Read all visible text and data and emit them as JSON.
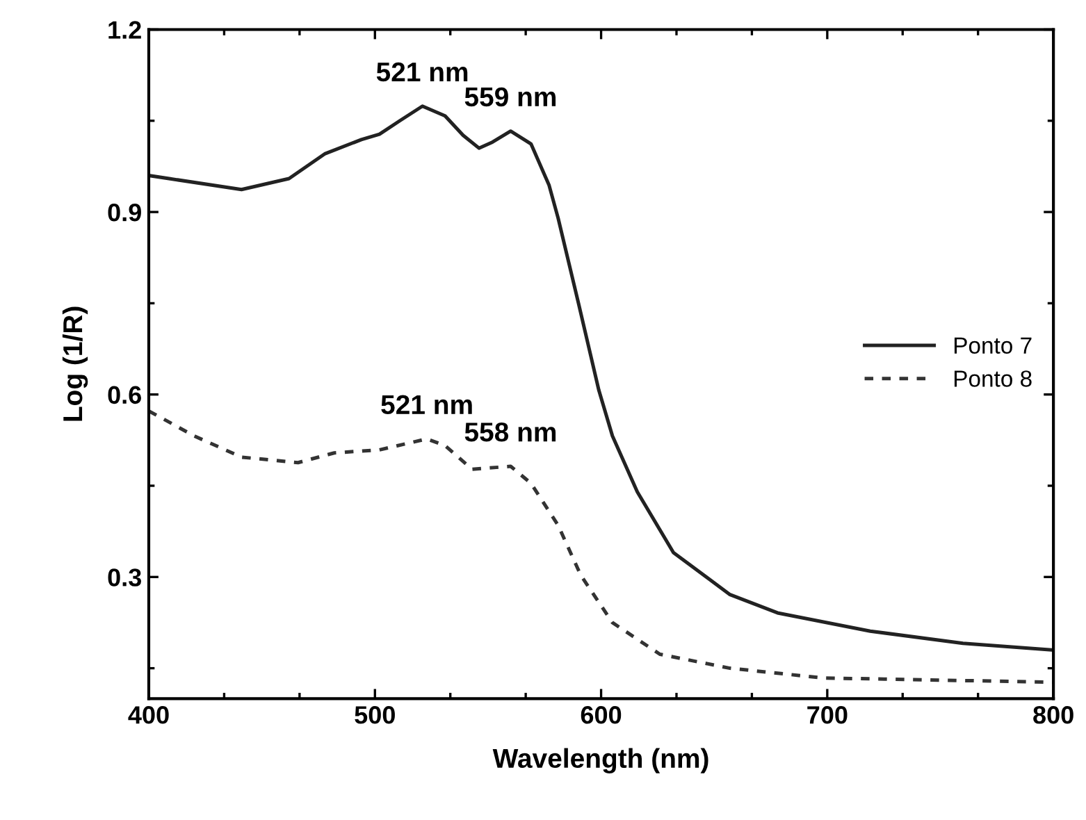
{
  "chart_data": {
    "type": "line",
    "xlabel": "Wavelength (nm)",
    "ylabel": "Log (1/R)",
    "xlim": [
      400,
      800
    ],
    "ylim": [
      0.1,
      1.2
    ],
    "xticks": [
      400,
      500,
      600,
      700,
      800
    ],
    "yticks": [
      0.3,
      0.6,
      0.9,
      1.2
    ],
    "grid": false,
    "legend": "right",
    "marker": "none",
    "series": [
      {
        "name": "Ponto 7",
        "color": "#222222",
        "line_style": "solid",
        "x": [
          400,
          441,
          462,
          478,
          494,
          502,
          511,
          521,
          531,
          539,
          546,
          552,
          560,
          569,
          577,
          581,
          590,
          599,
          605,
          616,
          632,
          657,
          678,
          719,
          760,
          800
        ],
        "values": [
          0.96,
          0.937,
          0.955,
          0.996,
          1.019,
          1.028,
          1.05,
          1.074,
          1.058,
          1.026,
          1.005,
          1.015,
          1.033,
          1.012,
          0.944,
          0.89,
          0.75,
          0.607,
          0.532,
          0.44,
          0.34,
          0.271,
          0.241,
          0.211,
          0.191,
          0.18
        ]
      },
      {
        "name": "Ponto 8",
        "color": "#333333",
        "line_style": "dashed",
        "x": [
          400,
          420,
          441,
          466,
          482,
          502,
          523,
          531,
          543,
          560,
          569,
          581,
          591,
          605,
          626,
          657,
          698,
          800
        ],
        "values": [
          0.573,
          0.532,
          0.497,
          0.488,
          0.504,
          0.509,
          0.527,
          0.516,
          0.477,
          0.482,
          0.454,
          0.385,
          0.303,
          0.225,
          0.173,
          0.15,
          0.134,
          0.127
        ]
      }
    ],
    "annotations": [
      {
        "text": "521 nm",
        "x": 521,
        "y": 1.074
      },
      {
        "text": "559 nm",
        "x": 560,
        "y": 1.033
      },
      {
        "text": "521 nm",
        "x": 523,
        "y": 0.527
      },
      {
        "text": "558 nm",
        "x": 560,
        "y": 0.482
      }
    ]
  }
}
